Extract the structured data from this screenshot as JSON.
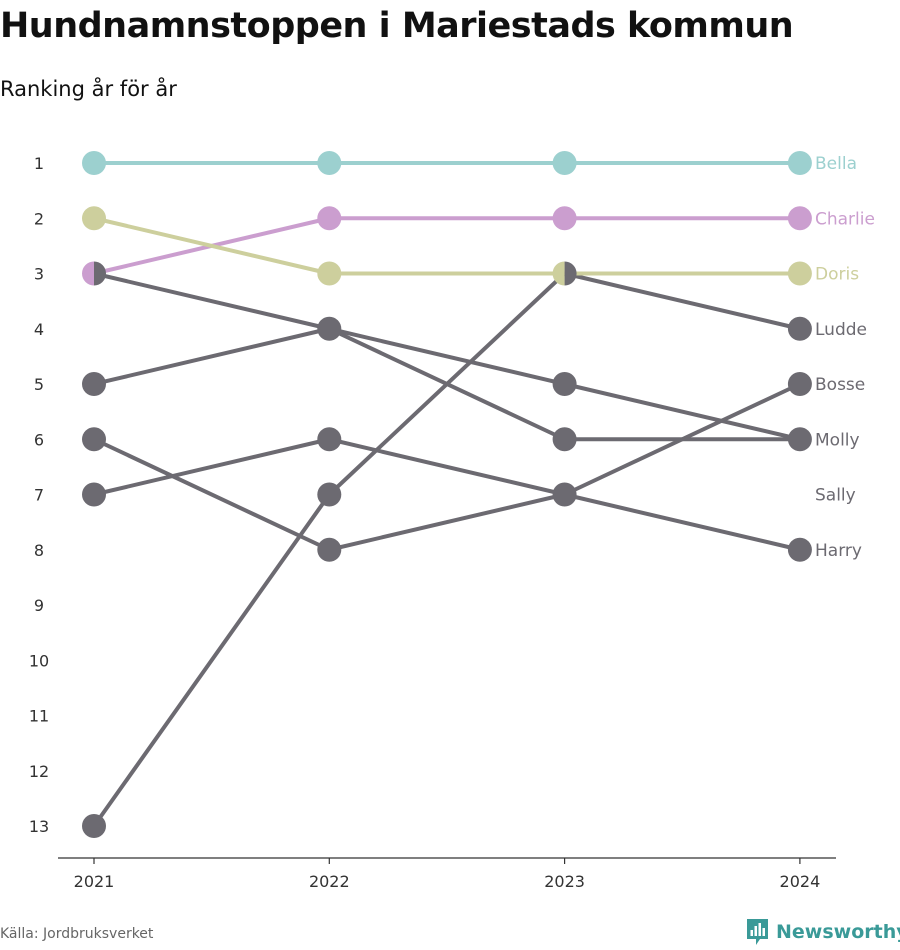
{
  "title": "Hundnamnstoppen i Mariestads kommun",
  "subtitle": "Ranking år för år",
  "source": "Källa: Jordbruksverket",
  "brand": "Newsworthy",
  "colors": {
    "teal": "#9cd0cf",
    "purple": "#cb9ecf",
    "olive": "#cdcf9d",
    "grey": "#6c6a71",
    "brand": "#3a9a98"
  },
  "chart_data": {
    "type": "line",
    "title": "Hundnamnstoppen i Mariestads kommun",
    "subtitle": "Ranking år för år",
    "x": [
      "2021",
      "2022",
      "2023",
      "2024"
    ],
    "y_ticks": [
      1,
      2,
      3,
      4,
      5,
      6,
      7,
      8,
      9,
      10,
      11,
      12,
      13
    ],
    "y_axis": "rank, inverted (1 at top)",
    "ylim": [
      1,
      13
    ],
    "series": [
      {
        "name": "Bella",
        "values": [
          1,
          1,
          1,
          1
        ],
        "color": "#9cd0cf"
      },
      {
        "name": "Charlie",
        "values": [
          3,
          2,
          2,
          2
        ],
        "color": "#cb9ecf"
      },
      {
        "name": "Doris",
        "values": [
          2,
          3,
          3,
          3
        ],
        "color": "#cdcf9d"
      },
      {
        "name": "Ludde",
        "values": [
          13,
          7,
          3,
          4
        ],
        "color": "#6c6a71"
      },
      {
        "name": "Bosse",
        "values": [
          6,
          8,
          7,
          5
        ],
        "color": "#6c6a71"
      },
      {
        "name": "Molly",
        "values": [
          3,
          4,
          6,
          6
        ],
        "color": "#6c6a71"
      },
      {
        "name": "Sally",
        "values": [
          5,
          4,
          5,
          6
        ],
        "color": "#6c6a71"
      },
      {
        "name": "Harry",
        "values": [
          7,
          6,
          7,
          8
        ],
        "color": "#6c6a71"
      }
    ],
    "end_labels": [
      {
        "rank": 1,
        "text": "Bella",
        "color": "#9cd0cf"
      },
      {
        "rank": 2,
        "text": "Charlie",
        "color": "#cb9ecf"
      },
      {
        "rank": 3,
        "text": "Doris",
        "color": "#cdcf9d"
      },
      {
        "rank": 4,
        "text": "Ludde",
        "color": "#6c6a71"
      },
      {
        "rank": 5,
        "text": "Bosse",
        "color": "#6c6a71"
      },
      {
        "rank": 6,
        "text": "Molly",
        "color": "#6c6a71"
      },
      {
        "rank": 7,
        "text": "Sally",
        "color": "#6c6a71"
      },
      {
        "rank": 8,
        "text": "Harry",
        "color": "#6c6a71"
      }
    ],
    "grid": false
  }
}
